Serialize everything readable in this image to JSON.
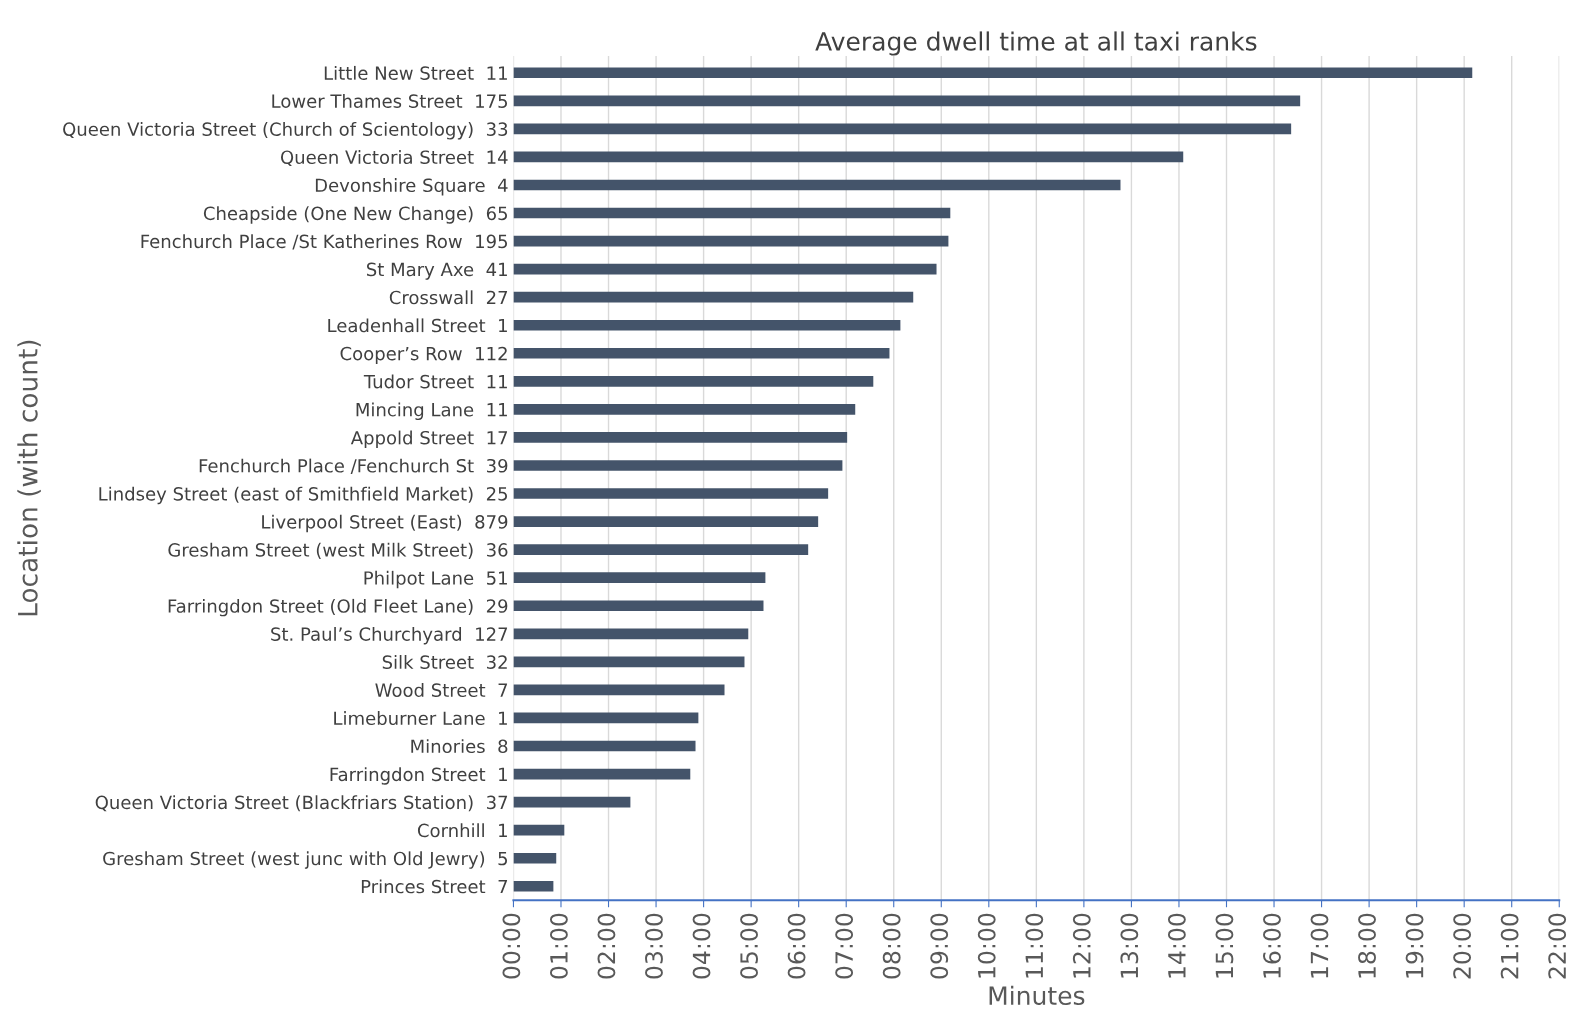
{
  "chart_data": {
    "type": "bar",
    "orientation": "horizontal",
    "title": "Average dwell time at all taxi ranks",
    "xlabel": "Minutes",
    "ylabel": "Location (with count)",
    "categories": [
      "Little New Street  11",
      "Lower Thames Street  175",
      "Queen Victoria Street (Church of Scientology)  33",
      "Queen Victoria Street  14",
      "Devonshire Square  4",
      "Cheapside (One New Change)  65",
      "Fenchurch Place /St Katherines Row  195",
      "St Mary Axe  41",
      "Crosswall  27",
      "Leadenhall Street  1",
      "Cooper’s Row  112",
      "Tudor Street  11",
      "Mincing Lane  11",
      "Appold Street  17",
      "Fenchurch Place /Fenchurch St  39",
      "Lindsey Street (east of Smithfield Market)  25",
      "Liverpool Street (East)  879",
      "Gresham Street (west Milk Street)  36",
      "Philpot Lane  51",
      "Farringdon Street (Old Fleet Lane)  29",
      "St. Paul’s Churchyard  127",
      "Silk Street  32",
      "Wood Street  7",
      "Limeburner Lane  1",
      "Minories  8",
      "Farringdon Street  1",
      "Queen Victoria Street (Blackfriars Station)  37",
      "Cornhill  1",
      "Gresham Street (west junc with Old Jewry)  5",
      "Princes Street  7"
    ],
    "values": [
      20.17,
      16.55,
      16.36,
      14.09,
      12.77,
      9.19,
      9.15,
      8.9,
      8.41,
      8.14,
      7.91,
      7.57,
      7.19,
      7.02,
      6.92,
      6.62,
      6.41,
      6.2,
      5.3,
      5.26,
      4.94,
      4.86,
      4.44,
      3.89,
      3.83,
      3.72,
      2.46,
      1.07,
      0.9,
      0.84
    ],
    "color": "#44546a",
    "xlim": [
      0,
      22
    ],
    "xticks": [
      {
        "value": 0,
        "label": "00:00"
      },
      {
        "value": 1,
        "label": "01:00"
      },
      {
        "value": 2,
        "label": "02:00"
      },
      {
        "value": 3,
        "label": "03:00"
      },
      {
        "value": 4,
        "label": "04:00"
      },
      {
        "value": 5,
        "label": "05:00"
      },
      {
        "value": 6,
        "label": "06:00"
      },
      {
        "value": 7,
        "label": "07:00"
      },
      {
        "value": 8,
        "label": "08:00"
      },
      {
        "value": 9,
        "label": "09:00"
      },
      {
        "value": 10,
        "label": "10:00"
      },
      {
        "value": 11,
        "label": "11:00"
      },
      {
        "value": 12,
        "label": "12:00"
      },
      {
        "value": 13,
        "label": "13:00"
      },
      {
        "value": 14,
        "label": "14:00"
      },
      {
        "value": 15,
        "label": "15:00"
      },
      {
        "value": 16,
        "label": "16:00"
      },
      {
        "value": 17,
        "label": "17:00"
      },
      {
        "value": 18,
        "label": "18:00"
      },
      {
        "value": 19,
        "label": "19:00"
      },
      {
        "value": 20,
        "label": "20:00"
      },
      {
        "value": 21,
        "label": "21:00"
      },
      {
        "value": 22,
        "label": "22:00"
      }
    ],
    "grid": "x",
    "legend": false
  }
}
